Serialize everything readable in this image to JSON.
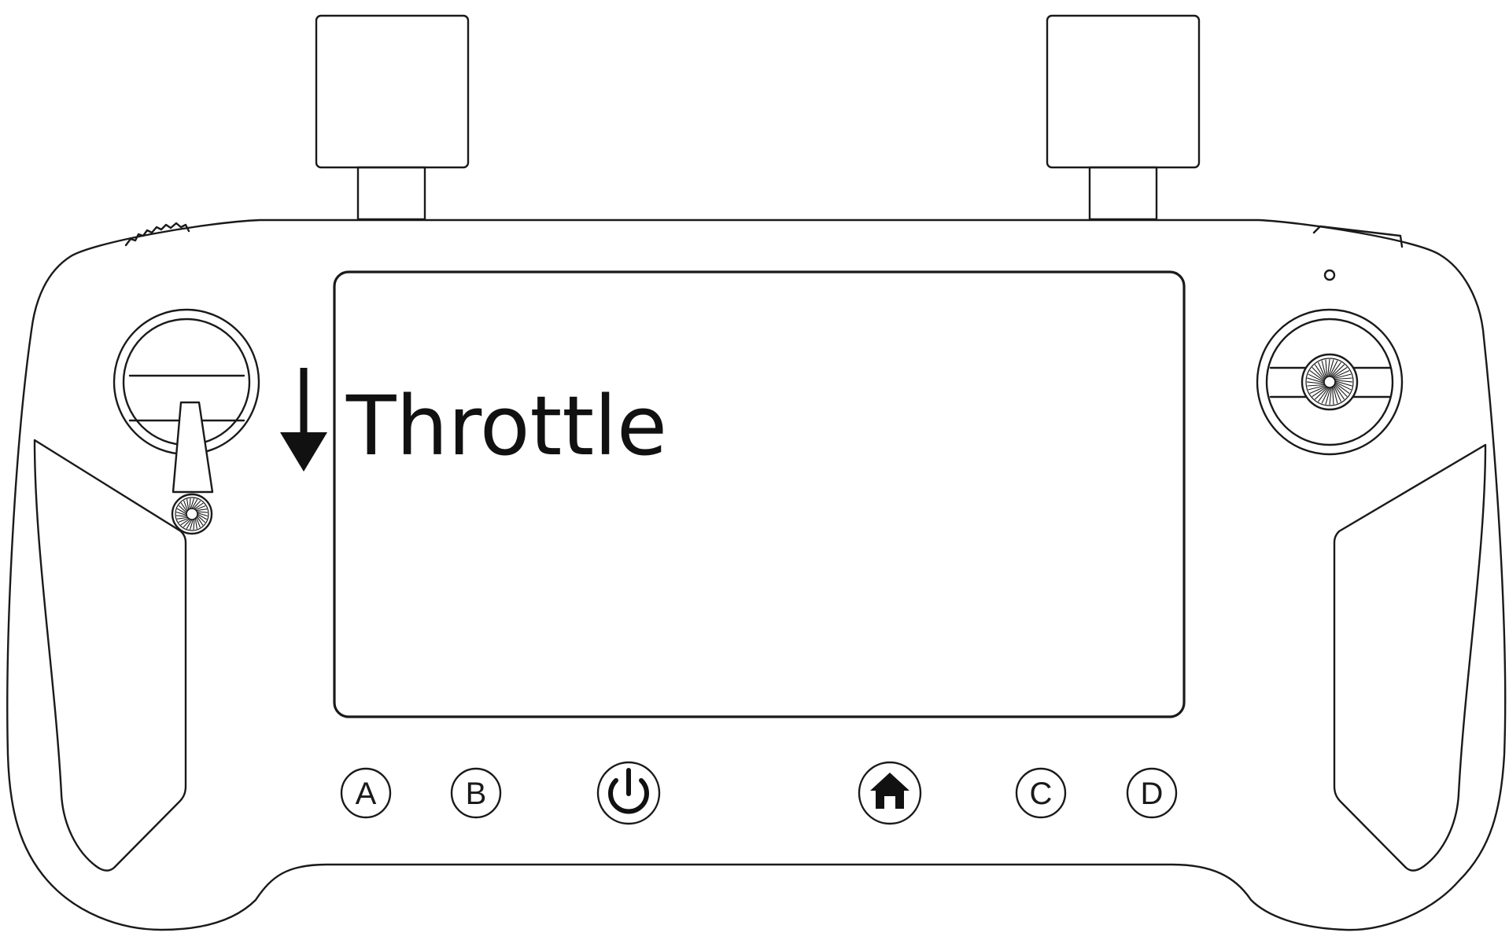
{
  "annotation": {
    "label": "Throttle",
    "arrow_direction": "down"
  },
  "buttons": {
    "a": "A",
    "b": "B",
    "c": "C",
    "d": "D",
    "power_icon": "power-icon",
    "home_icon": "home-icon"
  },
  "colors": {
    "line": "#1a1a1a",
    "background": "#ffffff"
  }
}
